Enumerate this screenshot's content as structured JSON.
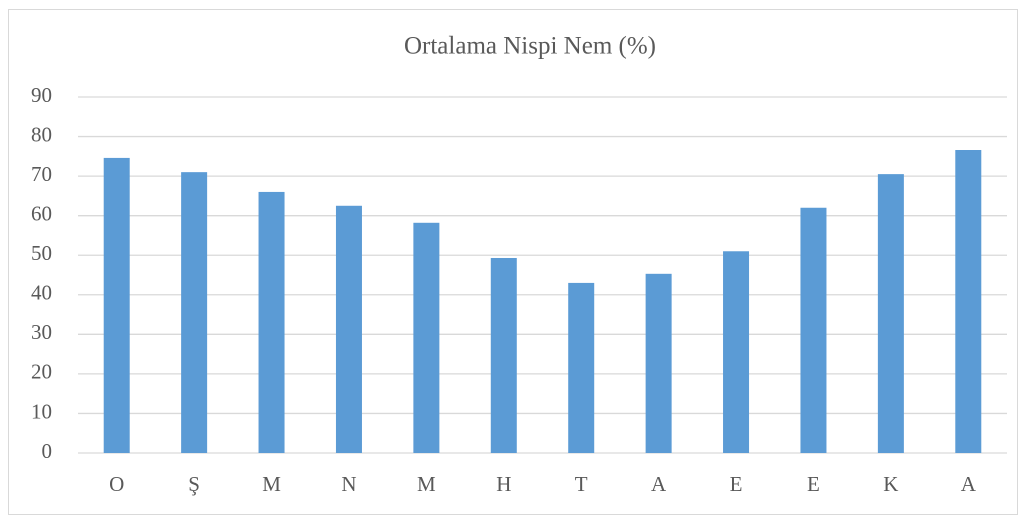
{
  "chart_data": {
    "type": "bar",
    "title": "Ortalama Nispi Nem (%)",
    "categories": [
      "O",
      "Ş",
      "M",
      "N",
      "M",
      "H",
      "T",
      "A",
      "E",
      "E",
      "K",
      "A"
    ],
    "values": [
      74.6,
      71,
      66,
      62.5,
      58.2,
      49.3,
      43,
      45.3,
      51,
      62,
      70.5,
      76.6
    ],
    "color": "#5b9bd5",
    "ylim": [
      0,
      90
    ],
    "yticks": [
      0,
      10,
      20,
      30,
      40,
      50,
      60,
      70,
      80,
      90
    ],
    "grid": true
  }
}
